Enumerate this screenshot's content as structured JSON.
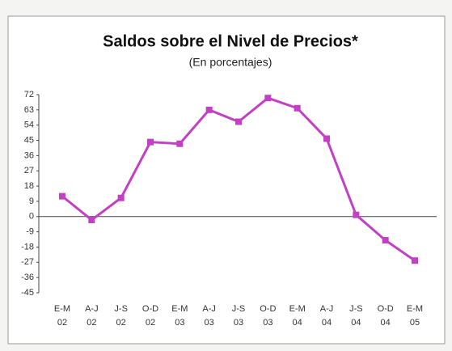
{
  "chart_data": {
    "type": "line",
    "title": "Saldos sobre el Nivel de Precios*",
    "subtitle": "(En porcentajes)",
    "categories": [
      "E-M\n02",
      "A-J\n02",
      "J-S\n02",
      "O-D\n02",
      "E-M\n03",
      "A-J\n03",
      "J-S\n03",
      "O-D\n03",
      "E-M\n04",
      "A-J\n04",
      "J-S\n04",
      "O-D\n04",
      "E-M\n05"
    ],
    "series": [
      {
        "name": "Saldos",
        "color": "#c33fc3",
        "values": [
          12,
          -2,
          11,
          44,
          43,
          63,
          56,
          70,
          64,
          46,
          1,
          -14,
          -26
        ]
      }
    ],
    "ylim": [
      -45,
      72
    ],
    "yticks": [
      72,
      63,
      54,
      45,
      36,
      27,
      18,
      9,
      0,
      -9,
      -18,
      -27,
      -36,
      -45
    ]
  }
}
